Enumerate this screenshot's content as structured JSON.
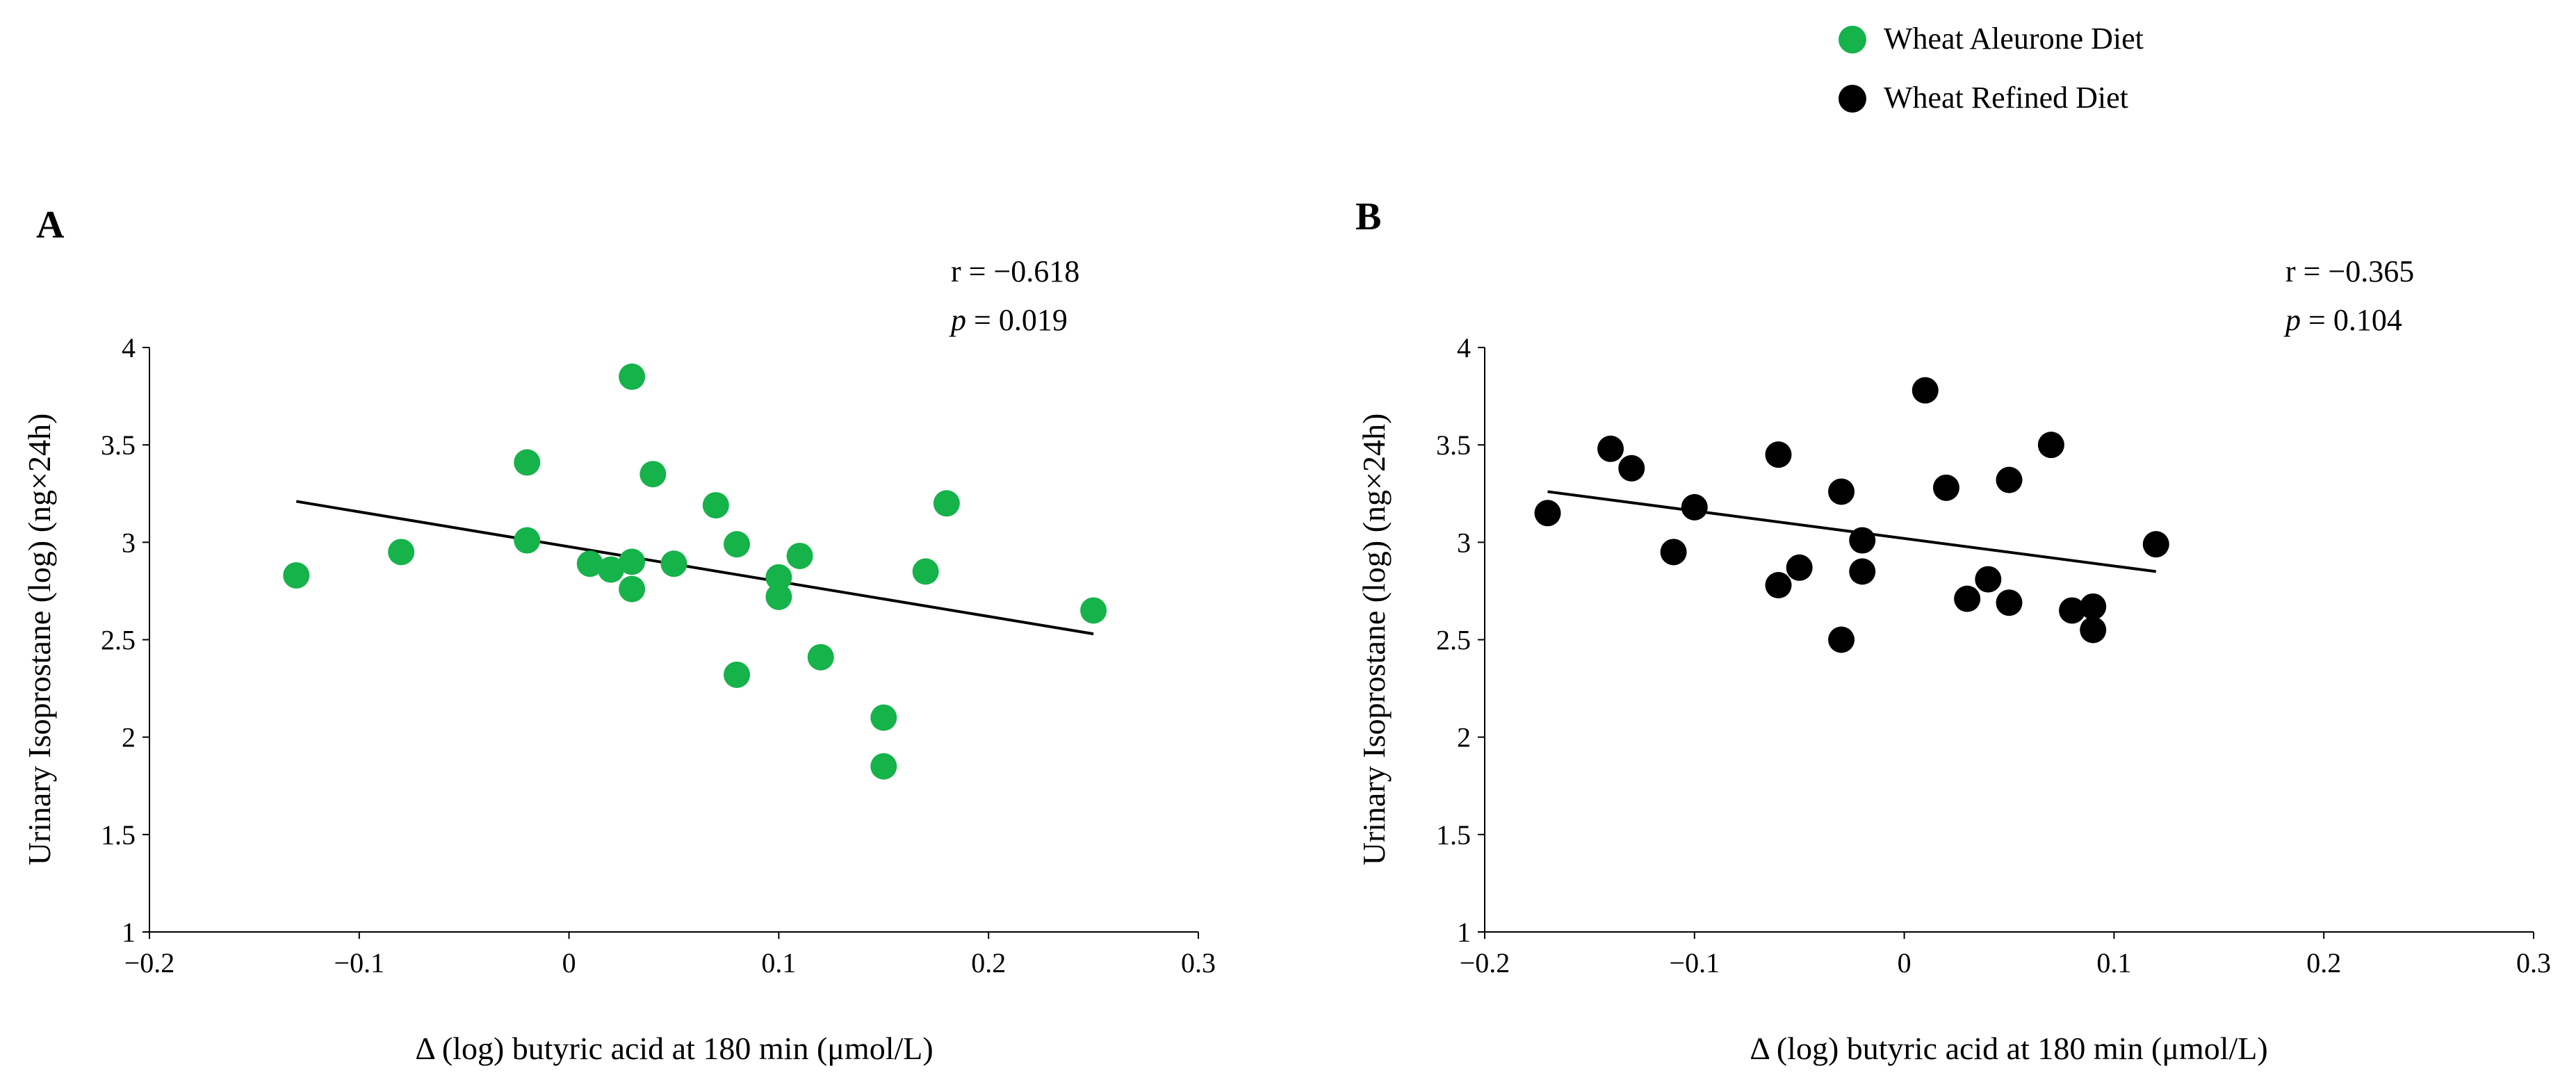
{
  "legend": {
    "items": [
      {
        "label": "Wheat Aleurone Diet",
        "color": "#16b24a"
      },
      {
        "label": "Wheat Refined Diet",
        "color": "#000000"
      }
    ]
  },
  "chart_data": [
    {
      "type": "scatter",
      "panel_label": "A",
      "series_name": "Wheat Aleurone Diet",
      "color": "#16b24a",
      "stats": {
        "r_text": "r = −0.618",
        "p_label": "p",
        "p_value_text": " = 0.019"
      },
      "xlabel": "Δ (log) butyric acid at 180 min (μmol/L)",
      "ylabel": "Urinary Isoprostane  (log) (ng×24h)",
      "xlim": [
        -0.2,
        0.3
      ],
      "ylim": [
        1,
        4
      ],
      "xticks": [
        -0.2,
        -0.1,
        0,
        0.1,
        0.2,
        0.3
      ],
      "xtick_labels": [
        "−0.2",
        "−0.1",
        "0",
        "0.1",
        "0.2",
        "0.3"
      ],
      "yticks": [
        1,
        1.5,
        2,
        2.5,
        3,
        3.5,
        4
      ],
      "ytick_labels": [
        "1",
        "1.5",
        "2",
        "2.5",
        "3",
        "3.5",
        "4"
      ],
      "x": [
        -0.13,
        -0.08,
        -0.02,
        -0.02,
        0.01,
        0.02,
        0.03,
        0.03,
        0.03,
        0.04,
        0.05,
        0.07,
        0.08,
        0.08,
        0.1,
        0.1,
        0.11,
        0.12,
        0.15,
        0.15,
        0.17,
        0.18,
        0.25
      ],
      "y": [
        2.83,
        2.95,
        3.41,
        3.01,
        2.89,
        2.86,
        3.85,
        2.9,
        2.76,
        3.35,
        2.89,
        3.19,
        2.99,
        2.32,
        2.82,
        2.72,
        2.93,
        2.41,
        2.1,
        1.85,
        2.85,
        3.2,
        2.65
      ],
      "trendline": {
        "x": [
          -0.13,
          0.25
        ],
        "y": [
          3.21,
          2.53
        ]
      }
    },
    {
      "type": "scatter",
      "panel_label": "B",
      "series_name": "Wheat Refined Diet",
      "color": "#000000",
      "stats": {
        "r_text": "r = −0.365",
        "p_label": "p",
        "p_value_text": " = 0.104"
      },
      "xlabel": "Δ (log) butyric acid at 180 min (μmol/L)",
      "ylabel": "Urinary Isoprostane  (log) (ng×24h)",
      "xlim": [
        -0.2,
        0.3
      ],
      "ylim": [
        1,
        4
      ],
      "xticks": [
        -0.2,
        -0.1,
        0,
        0.1,
        0.2,
        0.3
      ],
      "xtick_labels": [
        "−0.2",
        "−0.1",
        "0",
        "0.1",
        "0.2",
        "0.3"
      ],
      "yticks": [
        1,
        1.5,
        2,
        2.5,
        3,
        3.5,
        4
      ],
      "ytick_labels": [
        "1",
        "1.5",
        "2",
        "2.5",
        "3",
        "3.5",
        "4"
      ],
      "x": [
        -0.17,
        -0.14,
        -0.13,
        -0.11,
        -0.1,
        -0.06,
        -0.06,
        -0.05,
        -0.03,
        -0.03,
        -0.02,
        -0.02,
        0.01,
        0.02,
        0.03,
        0.04,
        0.05,
        0.05,
        0.07,
        0.08,
        0.09,
        0.09,
        0.12
      ],
      "y": [
        3.15,
        3.48,
        3.38,
        2.95,
        3.18,
        3.45,
        2.78,
        2.87,
        3.26,
        2.5,
        3.01,
        2.85,
        3.78,
        3.28,
        2.71,
        2.81,
        3.32,
        2.69,
        3.5,
        2.65,
        2.67,
        2.55,
        2.99
      ],
      "trendline": {
        "x": [
          -0.17,
          0.12
        ],
        "y": [
          3.26,
          2.85
        ]
      }
    }
  ]
}
